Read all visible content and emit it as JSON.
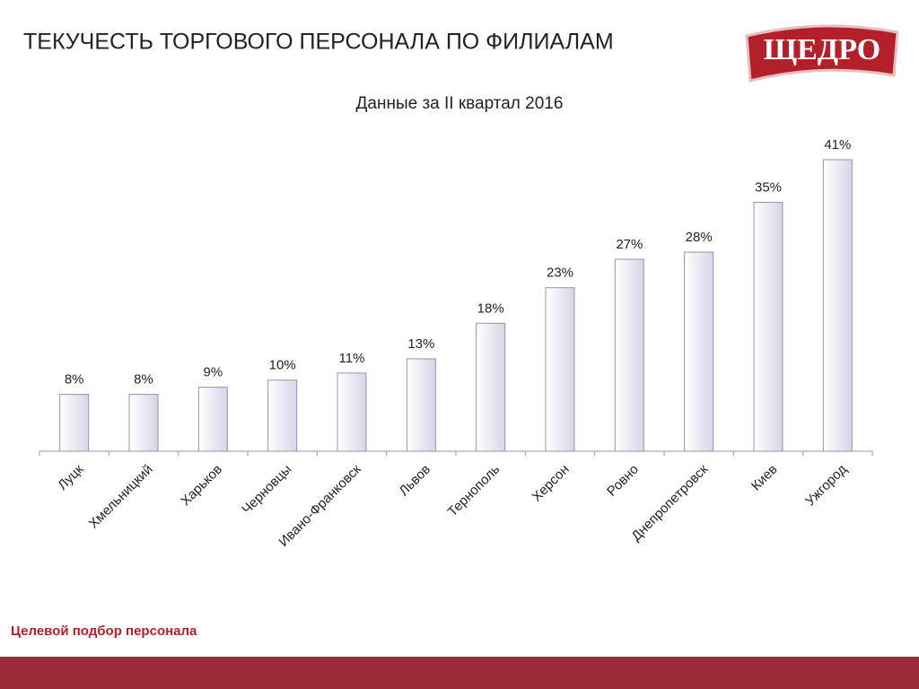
{
  "header": {
    "title": "ТЕКУЧЕСТЬ ТОРГОВОГО ПЕРСОНАЛА ПО ФИЛИАЛАМ",
    "logo": "ЩЕДРО"
  },
  "chart_data": {
    "type": "bar",
    "title": "Данные за II квартал 2016",
    "categories": [
      "Луцк",
      "Хмельницкий",
      "Харьков",
      "Черновцы",
      "Ивано-Франковск",
      "Львов",
      "Тернополь",
      "Херсон",
      "Ровно",
      "Днепропетровск",
      "Киев",
      "Ужгород"
    ],
    "values": [
      8,
      8,
      9,
      10,
      11,
      13,
      18,
      23,
      27,
      28,
      35,
      41
    ],
    "value_labels": [
      "8%",
      "8%",
      "9%",
      "10%",
      "11%",
      "13%",
      "18%",
      "23%",
      "27%",
      "28%",
      "35%",
      "41%"
    ],
    "color": "#d9d4e6"
  },
  "footer": {
    "text": "Целевой подбор персонала"
  }
}
